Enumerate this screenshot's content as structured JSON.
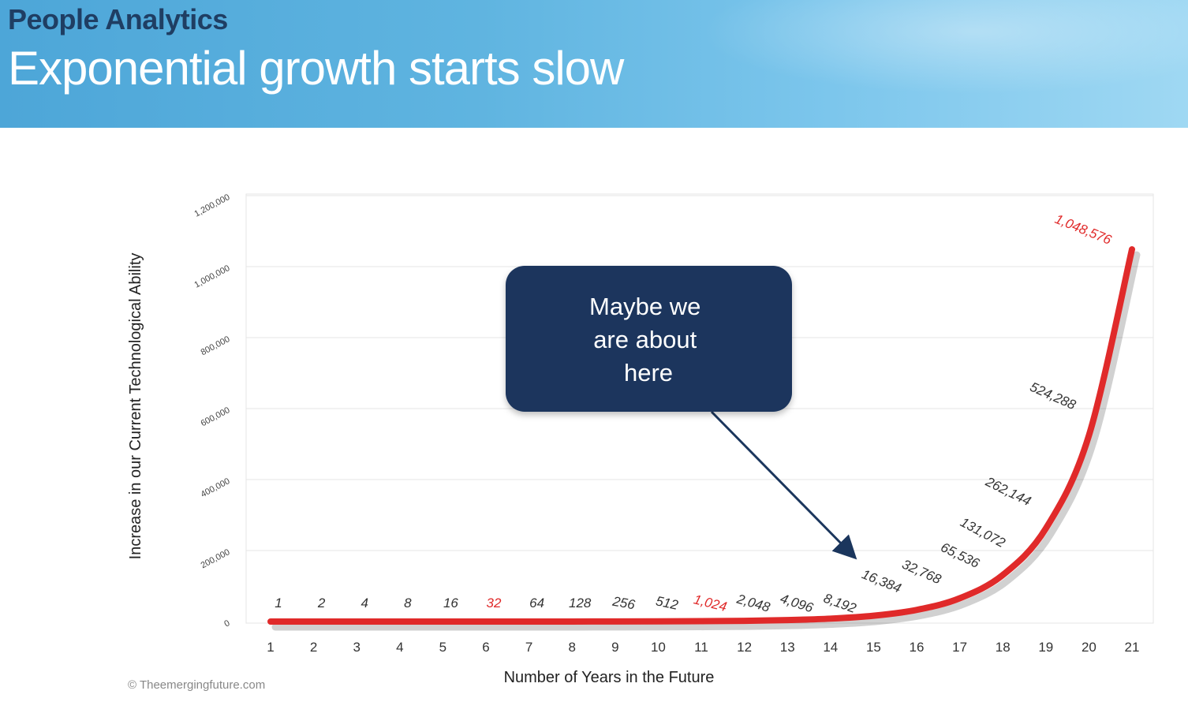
{
  "header": {
    "brand": "People Analytics",
    "title": "Exponential growth starts slow"
  },
  "chart_data": {
    "type": "line",
    "title": "",
    "xlabel": "Number of Years in the Future",
    "ylabel": "Increase in our Current Technological Ability",
    "x": [
      1,
      2,
      3,
      4,
      5,
      6,
      7,
      8,
      9,
      10,
      11,
      12,
      13,
      14,
      15,
      16,
      17,
      18,
      19,
      20,
      21
    ],
    "series": [
      {
        "values": [
          1,
          2,
          4,
          8,
          16,
          32,
          64,
          128,
          256,
          512,
          1024,
          2048,
          4096,
          8192,
          16384,
          32768,
          65536,
          131072,
          262144,
          524288,
          1048576
        ],
        "color": "#e02a2a"
      }
    ],
    "data_labels": [
      "1",
      "2",
      "4",
      "8",
      "16",
      "32",
      "64",
      "128",
      "256",
      "512",
      "1,024",
      "2,048",
      "4,096",
      "8,192",
      "16,384",
      "32,768",
      "65,536",
      "131,072",
      "262,144",
      "524,288",
      "1,048,576"
    ],
    "highlighted_labels": [
      "32",
      "1,024",
      "1,048,576"
    ],
    "y_ticks": [
      0,
      200000,
      400000,
      600000,
      800000,
      1000000,
      1200000
    ],
    "y_tick_labels": [
      "0",
      "200,000",
      "400,000",
      "600,000",
      "800,000",
      "1,000,000",
      "1,200,000"
    ],
    "ylim": [
      0,
      1200000
    ],
    "xlim": [
      1,
      21
    ],
    "grid": true,
    "legend": "none",
    "annotation": {
      "text_lines": [
        "Maybe we",
        "are about",
        "here"
      ],
      "points_to_x": 15,
      "box_color": "#1b365d"
    },
    "credit": "© Theemergingfuture.com"
  }
}
